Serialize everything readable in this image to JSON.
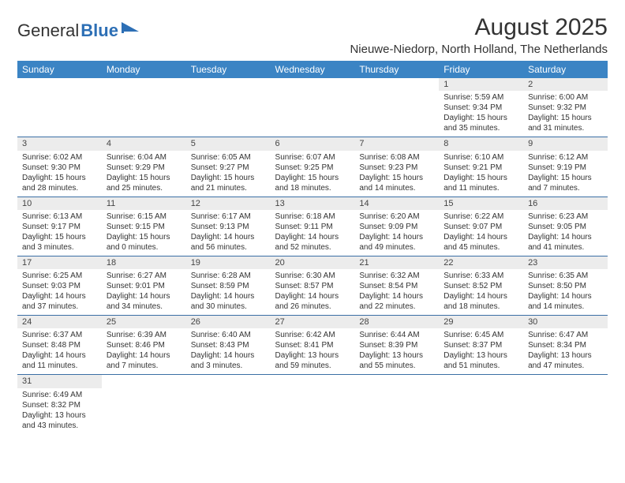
{
  "logo": {
    "text1": "General",
    "text2": "Blue"
  },
  "title": "August 2025",
  "location": "Nieuwe-Niedorp, North Holland, The Netherlands",
  "colors": {
    "header_bg": "#3b84c4",
    "header_text": "#ffffff",
    "daynum_bg": "#ececec",
    "cell_border": "#3b6fa5",
    "text": "#333333"
  },
  "columns": [
    "Sunday",
    "Monday",
    "Tuesday",
    "Wednesday",
    "Thursday",
    "Friday",
    "Saturday"
  ],
  "weeks": [
    [
      null,
      null,
      null,
      null,
      null,
      {
        "n": "1",
        "sr": "Sunrise: 5:59 AM",
        "ss": "Sunset: 9:34 PM",
        "dl": "Daylight: 15 hours and 35 minutes."
      },
      {
        "n": "2",
        "sr": "Sunrise: 6:00 AM",
        "ss": "Sunset: 9:32 PM",
        "dl": "Daylight: 15 hours and 31 minutes."
      }
    ],
    [
      {
        "n": "3",
        "sr": "Sunrise: 6:02 AM",
        "ss": "Sunset: 9:30 PM",
        "dl": "Daylight: 15 hours and 28 minutes."
      },
      {
        "n": "4",
        "sr": "Sunrise: 6:04 AM",
        "ss": "Sunset: 9:29 PM",
        "dl": "Daylight: 15 hours and 25 minutes."
      },
      {
        "n": "5",
        "sr": "Sunrise: 6:05 AM",
        "ss": "Sunset: 9:27 PM",
        "dl": "Daylight: 15 hours and 21 minutes."
      },
      {
        "n": "6",
        "sr": "Sunrise: 6:07 AM",
        "ss": "Sunset: 9:25 PM",
        "dl": "Daylight: 15 hours and 18 minutes."
      },
      {
        "n": "7",
        "sr": "Sunrise: 6:08 AM",
        "ss": "Sunset: 9:23 PM",
        "dl": "Daylight: 15 hours and 14 minutes."
      },
      {
        "n": "8",
        "sr": "Sunrise: 6:10 AM",
        "ss": "Sunset: 9:21 PM",
        "dl": "Daylight: 15 hours and 11 minutes."
      },
      {
        "n": "9",
        "sr": "Sunrise: 6:12 AM",
        "ss": "Sunset: 9:19 PM",
        "dl": "Daylight: 15 hours and 7 minutes."
      }
    ],
    [
      {
        "n": "10",
        "sr": "Sunrise: 6:13 AM",
        "ss": "Sunset: 9:17 PM",
        "dl": "Daylight: 15 hours and 3 minutes."
      },
      {
        "n": "11",
        "sr": "Sunrise: 6:15 AM",
        "ss": "Sunset: 9:15 PM",
        "dl": "Daylight: 15 hours and 0 minutes."
      },
      {
        "n": "12",
        "sr": "Sunrise: 6:17 AM",
        "ss": "Sunset: 9:13 PM",
        "dl": "Daylight: 14 hours and 56 minutes."
      },
      {
        "n": "13",
        "sr": "Sunrise: 6:18 AM",
        "ss": "Sunset: 9:11 PM",
        "dl": "Daylight: 14 hours and 52 minutes."
      },
      {
        "n": "14",
        "sr": "Sunrise: 6:20 AM",
        "ss": "Sunset: 9:09 PM",
        "dl": "Daylight: 14 hours and 49 minutes."
      },
      {
        "n": "15",
        "sr": "Sunrise: 6:22 AM",
        "ss": "Sunset: 9:07 PM",
        "dl": "Daylight: 14 hours and 45 minutes."
      },
      {
        "n": "16",
        "sr": "Sunrise: 6:23 AM",
        "ss": "Sunset: 9:05 PM",
        "dl": "Daylight: 14 hours and 41 minutes."
      }
    ],
    [
      {
        "n": "17",
        "sr": "Sunrise: 6:25 AM",
        "ss": "Sunset: 9:03 PM",
        "dl": "Daylight: 14 hours and 37 minutes."
      },
      {
        "n": "18",
        "sr": "Sunrise: 6:27 AM",
        "ss": "Sunset: 9:01 PM",
        "dl": "Daylight: 14 hours and 34 minutes."
      },
      {
        "n": "19",
        "sr": "Sunrise: 6:28 AM",
        "ss": "Sunset: 8:59 PM",
        "dl": "Daylight: 14 hours and 30 minutes."
      },
      {
        "n": "20",
        "sr": "Sunrise: 6:30 AM",
        "ss": "Sunset: 8:57 PM",
        "dl": "Daylight: 14 hours and 26 minutes."
      },
      {
        "n": "21",
        "sr": "Sunrise: 6:32 AM",
        "ss": "Sunset: 8:54 PM",
        "dl": "Daylight: 14 hours and 22 minutes."
      },
      {
        "n": "22",
        "sr": "Sunrise: 6:33 AM",
        "ss": "Sunset: 8:52 PM",
        "dl": "Daylight: 14 hours and 18 minutes."
      },
      {
        "n": "23",
        "sr": "Sunrise: 6:35 AM",
        "ss": "Sunset: 8:50 PM",
        "dl": "Daylight: 14 hours and 14 minutes."
      }
    ],
    [
      {
        "n": "24",
        "sr": "Sunrise: 6:37 AM",
        "ss": "Sunset: 8:48 PM",
        "dl": "Daylight: 14 hours and 11 minutes."
      },
      {
        "n": "25",
        "sr": "Sunrise: 6:39 AM",
        "ss": "Sunset: 8:46 PM",
        "dl": "Daylight: 14 hours and 7 minutes."
      },
      {
        "n": "26",
        "sr": "Sunrise: 6:40 AM",
        "ss": "Sunset: 8:43 PM",
        "dl": "Daylight: 14 hours and 3 minutes."
      },
      {
        "n": "27",
        "sr": "Sunrise: 6:42 AM",
        "ss": "Sunset: 8:41 PM",
        "dl": "Daylight: 13 hours and 59 minutes."
      },
      {
        "n": "28",
        "sr": "Sunrise: 6:44 AM",
        "ss": "Sunset: 8:39 PM",
        "dl": "Daylight: 13 hours and 55 minutes."
      },
      {
        "n": "29",
        "sr": "Sunrise: 6:45 AM",
        "ss": "Sunset: 8:37 PM",
        "dl": "Daylight: 13 hours and 51 minutes."
      },
      {
        "n": "30",
        "sr": "Sunrise: 6:47 AM",
        "ss": "Sunset: 8:34 PM",
        "dl": "Daylight: 13 hours and 47 minutes."
      }
    ],
    [
      {
        "n": "31",
        "sr": "Sunrise: 6:49 AM",
        "ss": "Sunset: 8:32 PM",
        "dl": "Daylight: 13 hours and 43 minutes."
      },
      null,
      null,
      null,
      null,
      null,
      null
    ]
  ]
}
